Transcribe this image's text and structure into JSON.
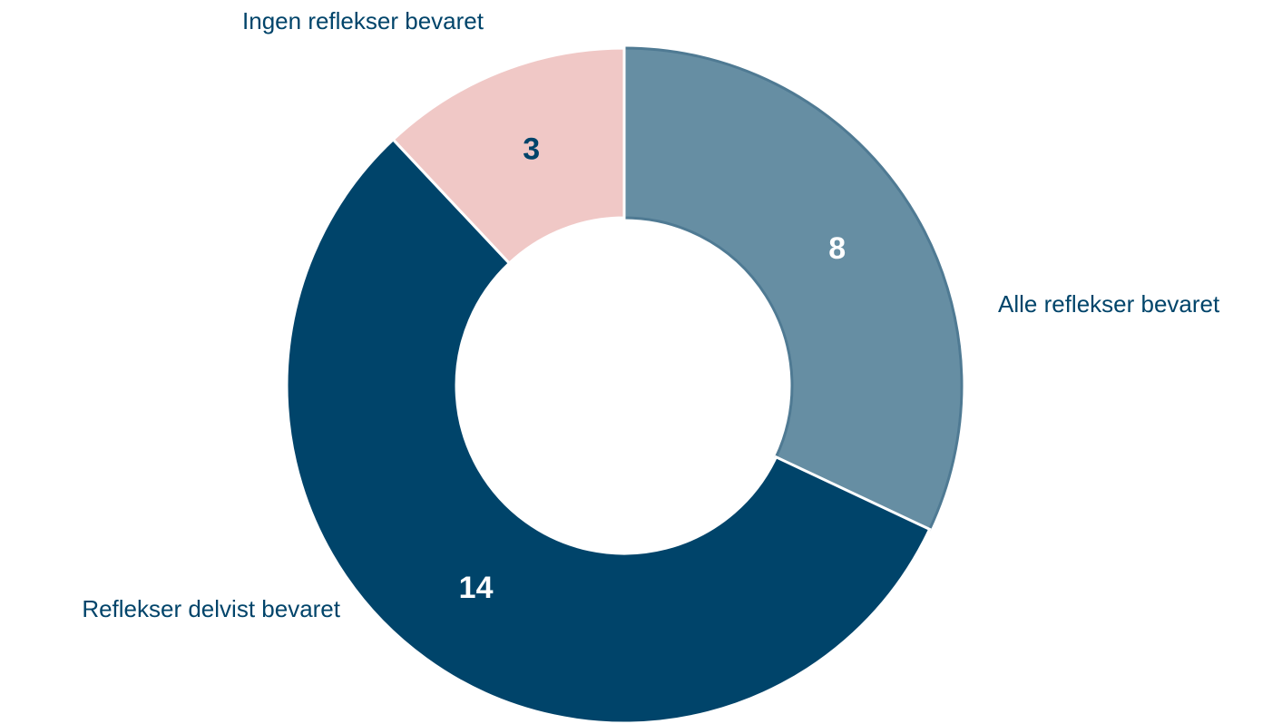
{
  "chart_data": {
    "type": "donut",
    "categories": [
      "Alle reflekser bevaret",
      "Reflekser delvist bevaret",
      "Ingen reflekser bevaret"
    ],
    "values": [
      8,
      14,
      3
    ],
    "colors": [
      "#668ea3",
      "#00446a",
      "#f0c8c6"
    ]
  }
}
